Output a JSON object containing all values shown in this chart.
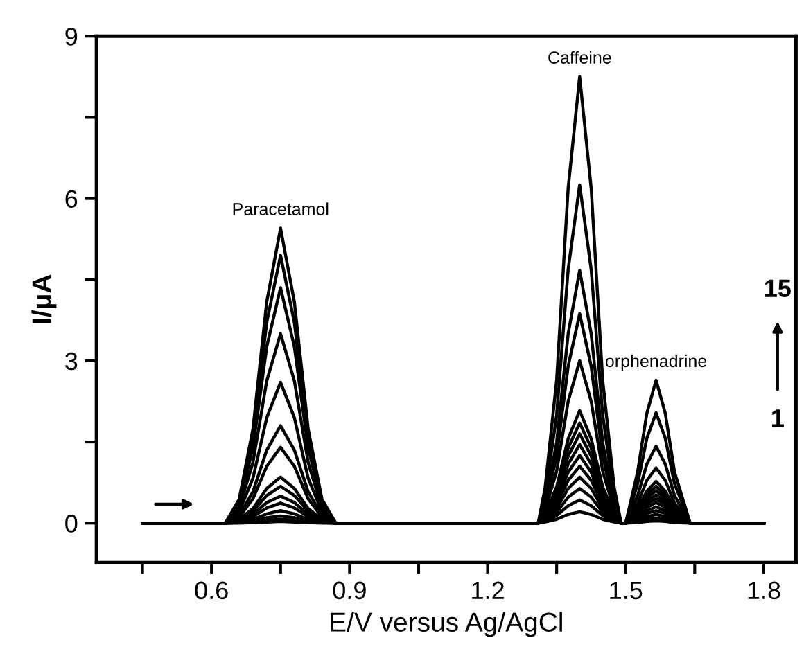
{
  "chart_data": {
    "type": "line",
    "xlabel": "E/V versus Ag/AgCl",
    "ylabel": "I/μA",
    "xlim": [
      0.35,
      1.87
    ],
    "ylim": [
      -0.73,
      9
    ],
    "xticks": [
      {
        "value": 0.45,
        "label": null
      },
      0.6,
      {
        "value": 0.75,
        "label": null
      },
      0.9,
      {
        "value": 1.05,
        "label": null
      },
      1.2,
      {
        "value": 1.35,
        "label": null
      },
      1.5,
      {
        "value": 1.65,
        "label": null
      },
      1.8
    ],
    "yticks": [
      0,
      {
        "value": 1.5,
        "label": null
      },
      3,
      {
        "value": 4.5,
        "label": null
      },
      6,
      {
        "value": 7.5,
        "label": null
      },
      9
    ],
    "grid": false,
    "legend": false,
    "marker": "none",
    "line_style": "solid",
    "x": [
      0.45,
      0.63,
      0.66,
      0.69,
      0.72,
      0.75,
      0.78,
      0.81,
      0.84,
      0.87,
      1.31,
      1.325,
      1.35,
      1.375,
      1.4,
      1.425,
      1.45,
      1.475,
      1.49,
      1.5,
      1.526,
      1.546,
      1.566,
      1.586,
      1.606,
      1.64,
      1.8
    ],
    "series": [
      {
        "color": "#000000",
        "values": [
          0,
          0,
          0,
          0.01,
          0.02,
          0.03,
          0.02,
          0.01,
          0,
          0,
          0,
          0.02,
          0.07,
          0.16,
          0.21,
          0.16,
          0.07,
          0.02,
          0,
          0,
          0.01,
          0.03,
          0.04,
          0.03,
          0.01,
          0,
          0
        ]
      },
      {
        "color": "#000000",
        "values": [
          0,
          0,
          0.01,
          0.02,
          0.05,
          0.07,
          0.05,
          0.02,
          0.01,
          0,
          0,
          0.03,
          0.14,
          0.32,
          0.43,
          0.32,
          0.14,
          0.03,
          0,
          0,
          0.03,
          0.07,
          0.09,
          0.07,
          0.03,
          0,
          0
        ]
      },
      {
        "color": "#000000",
        "values": [
          0,
          0,
          0.01,
          0.04,
          0.1,
          0.13,
          0.1,
          0.04,
          0.01,
          0,
          0,
          0.05,
          0.2,
          0.48,
          0.64,
          0.48,
          0.2,
          0.05,
          0,
          0,
          0.06,
          0.12,
          0.16,
          0.12,
          0.06,
          0,
          0
        ]
      },
      {
        "color": "#000000",
        "values": [
          0,
          0,
          0.02,
          0.07,
          0.17,
          0.23,
          0.17,
          0.07,
          0.02,
          0,
          0,
          0.07,
          0.27,
          0.64,
          0.85,
          0.64,
          0.27,
          0.07,
          0,
          0,
          0.08,
          0.18,
          0.23,
          0.18,
          0.08,
          0,
          0
        ]
      },
      {
        "color": "#000000",
        "values": [
          0,
          0,
          0.03,
          0.12,
          0.28,
          0.37,
          0.28,
          0.12,
          0.03,
          0,
          0,
          0.08,
          0.34,
          0.79,
          1.05,
          0.79,
          0.34,
          0.08,
          0,
          0,
          0.11,
          0.23,
          0.3,
          0.23,
          0.11,
          0,
          0
        ]
      },
      {
        "color": "#000000",
        "values": [
          0,
          0,
          0.04,
          0.16,
          0.38,
          0.5,
          0.38,
          0.16,
          0.04,
          0,
          0,
          0.1,
          0.4,
          0.94,
          1.25,
          0.94,
          0.4,
          0.1,
          0,
          0,
          0.14,
          0.29,
          0.38,
          0.29,
          0.14,
          0,
          0
        ]
      },
      {
        "color": "#000000",
        "values": [
          0,
          0,
          0.05,
          0.22,
          0.51,
          0.68,
          0.51,
          0.22,
          0.05,
          0,
          0,
          0.12,
          0.46,
          1.09,
          1.45,
          1.09,
          0.46,
          0.12,
          0,
          0,
          0.16,
          0.35,
          0.45,
          0.35,
          0.16,
          0,
          0
        ]
      },
      {
        "color": "#000000",
        "values": [
          0,
          0,
          0.07,
          0.27,
          0.64,
          0.85,
          0.64,
          0.27,
          0.07,
          0,
          0,
          0.13,
          0.53,
          1.24,
          1.65,
          1.24,
          0.53,
          0.13,
          0,
          0,
          0.19,
          0.4,
          0.52,
          0.4,
          0.19,
          0,
          0
        ]
      },
      {
        "color": "#000000",
        "values": [
          0,
          0,
          0.11,
          0.45,
          1.05,
          1.4,
          1.05,
          0.45,
          0.11,
          0,
          0,
          0.15,
          0.59,
          1.39,
          1.85,
          1.39,
          0.59,
          0.15,
          0,
          0,
          0.22,
          0.46,
          0.6,
          0.46,
          0.22,
          0,
          0
        ]
      },
      {
        "color": "#000000",
        "values": [
          0,
          0,
          0.14,
          0.58,
          1.35,
          1.8,
          1.35,
          0.58,
          0.14,
          0,
          0,
          0.17,
          0.67,
          1.56,
          2.08,
          1.56,
          0.67,
          0.17,
          0,
          0,
          0.24,
          0.52,
          0.68,
          0.52,
          0.24,
          0,
          0
        ]
      },
      {
        "color": "#000000",
        "values": [
          0,
          0,
          0.21,
          0.83,
          1.95,
          2.6,
          1.95,
          0.83,
          0.21,
          0,
          0,
          0.24,
          0.96,
          2.25,
          3.0,
          2.25,
          0.96,
          0.24,
          0,
          0,
          0.28,
          0.59,
          0.77,
          0.59,
          0.28,
          0,
          0
        ]
      },
      {
        "color": "#000000",
        "values": [
          0,
          0,
          0.28,
          1.12,
          2.63,
          3.5,
          2.63,
          1.12,
          0.28,
          0,
          0,
          0.31,
          1.24,
          2.9,
          3.87,
          2.9,
          1.24,
          0.31,
          0,
          0,
          0.37,
          0.79,
          1.02,
          0.79,
          0.37,
          0,
          0
        ]
      },
      {
        "color": "#000000",
        "values": [
          0,
          0,
          0.35,
          1.39,
          3.26,
          4.35,
          3.26,
          1.39,
          0.35,
          0,
          0,
          0.37,
          1.49,
          3.5,
          4.67,
          3.5,
          1.49,
          0.37,
          0,
          0,
          0.51,
          1.09,
          1.42,
          1.09,
          0.51,
          0,
          0
        ]
      },
      {
        "color": "#000000",
        "values": [
          0,
          0,
          0.4,
          1.58,
          3.71,
          4.95,
          3.71,
          1.58,
          0.4,
          0,
          0,
          0.5,
          2.0,
          4.69,
          6.25,
          4.69,
          2.0,
          0.5,
          0,
          0,
          0.73,
          1.57,
          2.04,
          1.57,
          0.73,
          0,
          0
        ]
      },
      {
        "color": "#000000",
        "values": [
          0,
          0,
          0.44,
          1.74,
          4.09,
          5.45,
          4.09,
          1.74,
          0.44,
          0,
          0,
          0.66,
          2.64,
          6.19,
          8.25,
          6.19,
          2.64,
          0.66,
          0,
          0,
          0.95,
          2.03,
          2.64,
          2.03,
          0.95,
          0,
          0
        ]
      }
    ],
    "annotations": [
      {
        "text": "Paracetamol",
        "x": 0.75,
        "y": 5.45
      },
      {
        "text": "Caffeine",
        "x": 1.4,
        "y": 8.25
      },
      {
        "text": "orphenadrine",
        "x": 1.566,
        "y": 2.64
      },
      "15",
      "1"
    ]
  }
}
